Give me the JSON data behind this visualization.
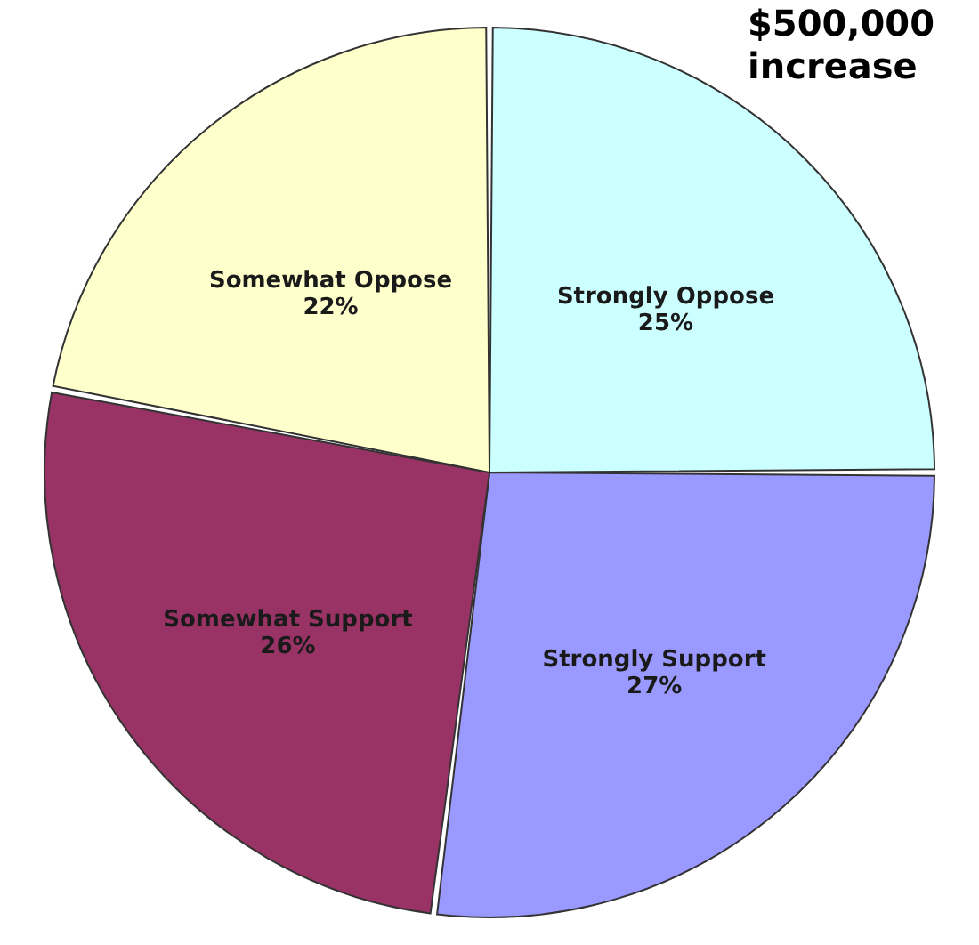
{
  "chart_data": {
    "type": "pie",
    "title": "$500,000\nincrease",
    "categories": [
      "Strongly Oppose",
      "Strongly Support",
      "Somewhat Support",
      "Somewhat Oppose"
    ],
    "values": [
      25,
      27,
      26,
      22
    ],
    "colors": [
      "#ccffff",
      "#9999ff",
      "#993366",
      "#ffffcc"
    ],
    "value_labels": [
      "25%",
      "27%",
      "26%",
      "22%"
    ]
  }
}
